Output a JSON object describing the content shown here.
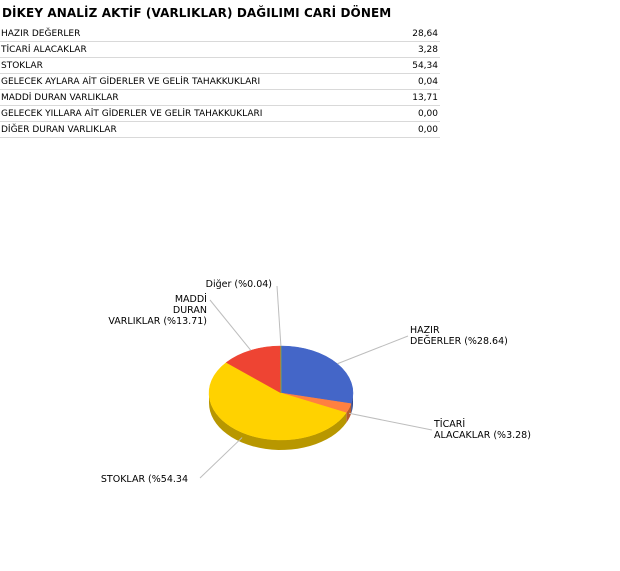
{
  "page_title": "DİKEY ANALİZ AKTİF (VARLIKLAR) DAĞILIMI CARİ DÖNEM",
  "table": {
    "rows": [
      {
        "label": "HAZIR DEĞERLER",
        "value": "28,64"
      },
      {
        "label": "TİCARİ ALACAKLAR",
        "value": "3,28"
      },
      {
        "label": "STOKLAR",
        "value": "54,34"
      },
      {
        "label": "GELECEK AYLARA AİT GİDERLER VE GELİR TAHAKKUKLARI",
        "value": "0,04"
      },
      {
        "label": "MADDİ DURAN VARLIKLAR",
        "value": "13,71"
      },
      {
        "label": "GELECEK YILLARA AİT GİDERLER VE GELİR TAHAKKUKLARI",
        "value": "0,00"
      },
      {
        "label": "DİĞER DURAN VARLIKLAR",
        "value": "0,00"
      }
    ]
  },
  "chart_data": {
    "type": "pie",
    "title": "",
    "slices": [
      {
        "label_lines": [
          "HAZIR",
          "DEĞERLER (%28.64)"
        ],
        "value": 28.64,
        "color": "#4466c8"
      },
      {
        "label_lines": [
          "TİCARİ",
          "ALACAKLAR (%3.28)"
        ],
        "value": 3.28,
        "color": "#ff8040"
      },
      {
        "label_lines": [
          "STOKLAR (%54.34"
        ],
        "value": 54.34,
        "color": "#ffd200"
      },
      {
        "label_lines": [
          "MADDİ",
          "DURAN",
          "VARLIKLAR (%13.71)"
        ],
        "value": 13.71,
        "color": "#ee4433"
      },
      {
        "label_lines": [
          "Diğer (%0.04)"
        ],
        "value": 0.04,
        "color": "#66cc44"
      }
    ]
  }
}
